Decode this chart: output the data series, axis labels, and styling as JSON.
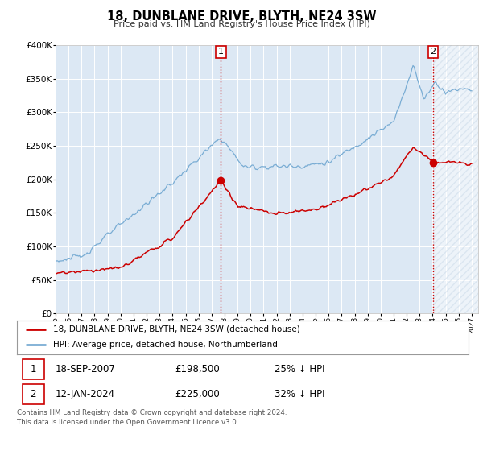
{
  "title": "18, DUNBLANE DRIVE, BLYTH, NE24 3SW",
  "subtitle": "Price paid vs. HM Land Registry's House Price Index (HPI)",
  "legend_line1": "18, DUNBLANE DRIVE, BLYTH, NE24 3SW (detached house)",
  "legend_line2": "HPI: Average price, detached house, Northumberland",
  "transaction1_date": "18-SEP-2007",
  "transaction1_price": "£198,500",
  "transaction1_hpi": "25% ↓ HPI",
  "transaction2_date": "12-JAN-2024",
  "transaction2_price": "£225,000",
  "transaction2_hpi": "32% ↓ HPI",
  "footer1": "Contains HM Land Registry data © Crown copyright and database right 2024.",
  "footer2": "This data is licensed under the Open Government Licence v3.0.",
  "red_color": "#cc0000",
  "blue_color": "#7aadd4",
  "hatch_color": "#c8d8e8",
  "background_color": "#dce8f4",
  "ylim": [
    0,
    400000
  ],
  "xlim_start": 1995.0,
  "xlim_end": 2027.5,
  "future_start": 2024.1,
  "transaction1_x": 2007.72,
  "transaction1_y": 198500,
  "transaction2_x": 2024.04,
  "transaction2_y": 225000
}
